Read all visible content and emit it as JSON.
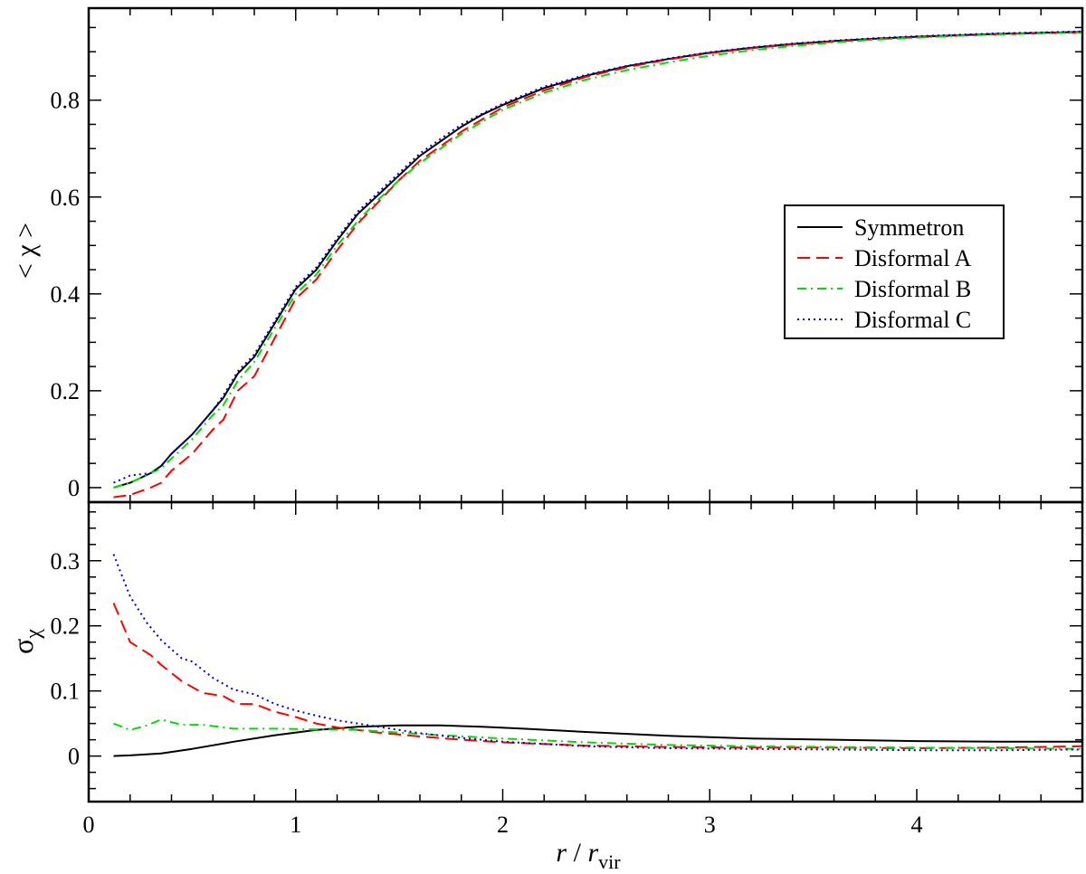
{
  "chart_data": [
    {
      "type": "line",
      "panel": "top",
      "xlabel": "",
      "ylabel": "< χ >",
      "xlim": [
        0,
        4.8
      ],
      "ylim": [
        -0.03,
        0.99
      ],
      "yticks": [
        0,
        0.2,
        0.4,
        0.6,
        0.8
      ],
      "ytick_labels": [
        "0",
        "0.2",
        "0.4",
        "0.6",
        "0.8"
      ],
      "legend": {
        "placement": "center-right",
        "entries": [
          "Symmetron",
          "Disformal A",
          "Disformal B",
          "Disformal C"
        ]
      },
      "series": [
        {
          "name": "Symmetron",
          "color": "#000000",
          "dash": "solid",
          "x": [
            0.12,
            0.2,
            0.3,
            0.35,
            0.4,
            0.5,
            0.6,
            0.65,
            0.72,
            0.8,
            0.9,
            1.0,
            1.1,
            1.2,
            1.3,
            1.4,
            1.5,
            1.6,
            1.7,
            1.8,
            1.9,
            2.0,
            2.2,
            2.4,
            2.6,
            2.8,
            3.0,
            3.2,
            3.4,
            3.6,
            3.8,
            4.0,
            4.2,
            4.4,
            4.6,
            4.8
          ],
          "y": [
            0.0,
            0.01,
            0.03,
            0.045,
            0.07,
            0.11,
            0.16,
            0.185,
            0.235,
            0.27,
            0.34,
            0.41,
            0.45,
            0.51,
            0.565,
            0.605,
            0.645,
            0.685,
            0.715,
            0.745,
            0.77,
            0.79,
            0.825,
            0.85,
            0.87,
            0.885,
            0.898,
            0.908,
            0.916,
            0.922,
            0.927,
            0.931,
            0.934,
            0.937,
            0.939,
            0.941
          ]
        },
        {
          "name": "Disformal A",
          "color": "#ff0000",
          "dash": "dashed",
          "x": [
            0.12,
            0.2,
            0.3,
            0.35,
            0.4,
            0.5,
            0.6,
            0.65,
            0.72,
            0.8,
            0.9,
            1.0,
            1.1,
            1.2,
            1.3,
            1.4,
            1.5,
            1.6,
            1.7,
            1.8,
            1.9,
            2.0,
            2.2,
            2.4,
            2.6,
            2.8,
            3.0,
            3.2,
            3.4,
            3.6,
            3.8,
            4.0,
            4.2,
            4.4,
            4.6,
            4.8
          ],
          "y": [
            -0.02,
            -0.015,
            0.0,
            0.01,
            0.035,
            0.07,
            0.12,
            0.14,
            0.2,
            0.23,
            0.31,
            0.39,
            0.43,
            0.49,
            0.545,
            0.59,
            0.635,
            0.675,
            0.705,
            0.735,
            0.76,
            0.785,
            0.82,
            0.848,
            0.868,
            0.884,
            0.897,
            0.907,
            0.915,
            0.921,
            0.926,
            0.93,
            0.933,
            0.936,
            0.938,
            0.94
          ]
        },
        {
          "name": "Disformal B",
          "color": "#00dd00",
          "dash": "dash-dot",
          "x": [
            0.12,
            0.2,
            0.3,
            0.35,
            0.4,
            0.5,
            0.6,
            0.65,
            0.72,
            0.8,
            0.9,
            1.0,
            1.1,
            1.2,
            1.3,
            1.4,
            1.5,
            1.6,
            1.7,
            1.8,
            1.9,
            2.0,
            2.2,
            2.4,
            2.6,
            2.8,
            3.0,
            3.2,
            3.4,
            3.6,
            3.8,
            4.0,
            4.2,
            4.4,
            4.6,
            4.8
          ],
          "y": [
            0.0,
            0.01,
            0.03,
            0.04,
            0.06,
            0.1,
            0.15,
            0.17,
            0.22,
            0.26,
            0.33,
            0.4,
            0.44,
            0.5,
            0.55,
            0.595,
            0.635,
            0.67,
            0.7,
            0.73,
            0.755,
            0.78,
            0.815,
            0.842,
            0.862,
            0.878,
            0.892,
            0.903,
            0.912,
            0.919,
            0.925,
            0.929,
            0.933,
            0.936,
            0.938,
            0.94
          ]
        },
        {
          "name": "Disformal C",
          "color": "#0000cc",
          "dash": "dotted",
          "x": [
            0.12,
            0.2,
            0.3,
            0.35,
            0.4,
            0.5,
            0.6,
            0.65,
            0.72,
            0.8,
            0.9,
            1.0,
            1.1,
            1.2,
            1.3,
            1.4,
            1.5,
            1.6,
            1.7,
            1.8,
            1.9,
            2.0,
            2.2,
            2.4,
            2.6,
            2.8,
            3.0,
            3.2,
            3.4,
            3.6,
            3.8,
            4.0,
            4.2,
            4.4,
            4.6,
            4.8
          ],
          "y": [
            0.01,
            0.025,
            0.03,
            0.045,
            0.07,
            0.11,
            0.16,
            0.19,
            0.24,
            0.275,
            0.345,
            0.415,
            0.455,
            0.515,
            0.57,
            0.61,
            0.65,
            0.69,
            0.72,
            0.75,
            0.772,
            0.793,
            0.828,
            0.852,
            0.871,
            0.886,
            0.899,
            0.909,
            0.917,
            0.923,
            0.928,
            0.932,
            0.935,
            0.938,
            0.94,
            0.942
          ]
        }
      ]
    },
    {
      "type": "line",
      "panel": "bottom",
      "xlabel": "r / r_vir",
      "ylabel": "σ_χ",
      "xlim": [
        0,
        4.8
      ],
      "ylim": [
        -0.07,
        0.39
      ],
      "xticks": [
        0,
        1,
        2,
        3,
        4
      ],
      "xtick_labels": [
        "0",
        "1",
        "2",
        "3",
        "4"
      ],
      "yticks": [
        0,
        0.1,
        0.2,
        0.3
      ],
      "ytick_labels": [
        "0",
        "0.1",
        "0.2",
        "0.3"
      ],
      "series": [
        {
          "name": "Symmetron",
          "color": "#000000",
          "dash": "solid",
          "x": [
            0.12,
            0.2,
            0.35,
            0.5,
            0.7,
            0.9,
            1.1,
            1.3,
            1.5,
            1.7,
            1.9,
            2.1,
            2.4,
            2.8,
            3.2,
            3.6,
            4.0,
            4.4,
            4.8
          ],
          "y": [
            0.0,
            0.001,
            0.004,
            0.011,
            0.022,
            0.032,
            0.04,
            0.045,
            0.047,
            0.047,
            0.045,
            0.042,
            0.037,
            0.031,
            0.027,
            0.025,
            0.023,
            0.022,
            0.022
          ]
        },
        {
          "name": "Disformal A",
          "color": "#ff0000",
          "dash": "dashed",
          "x": [
            0.12,
            0.2,
            0.3,
            0.35,
            0.45,
            0.55,
            0.65,
            0.72,
            0.8,
            0.9,
            1.0,
            1.1,
            1.2,
            1.4,
            1.6,
            1.8,
            2.0,
            2.4,
            2.8,
            3.2,
            3.6,
            4.0,
            4.4,
            4.8
          ],
          "y": [
            0.235,
            0.175,
            0.155,
            0.14,
            0.115,
            0.097,
            0.092,
            0.08,
            0.08,
            0.068,
            0.06,
            0.05,
            0.044,
            0.036,
            0.03,
            0.025,
            0.021,
            0.016,
            0.014,
            0.013,
            0.013,
            0.012,
            0.013,
            0.015
          ]
        },
        {
          "name": "Disformal B",
          "color": "#00dd00",
          "dash": "dash-dot",
          "x": [
            0.12,
            0.2,
            0.28,
            0.35,
            0.45,
            0.55,
            0.7,
            0.9,
            1.1,
            1.3,
            1.5,
            1.7,
            2.0,
            2.4,
            2.8,
            3.2,
            3.6,
            4.0,
            4.4,
            4.8
          ],
          "y": [
            0.05,
            0.04,
            0.047,
            0.056,
            0.048,
            0.048,
            0.042,
            0.042,
            0.041,
            0.04,
            0.036,
            0.032,
            0.027,
            0.021,
            0.017,
            0.015,
            0.014,
            0.013,
            0.012,
            0.011
          ]
        },
        {
          "name": "Disformal C",
          "color": "#0000cc",
          "dash": "dotted",
          "x": [
            0.12,
            0.2,
            0.28,
            0.35,
            0.45,
            0.5,
            0.6,
            0.7,
            0.8,
            0.9,
            1.0,
            1.1,
            1.2,
            1.4,
            1.6,
            1.8,
            2.0,
            2.4,
            2.8,
            3.2,
            3.6,
            4.0,
            4.4,
            4.8
          ],
          "y": [
            0.31,
            0.245,
            0.205,
            0.178,
            0.15,
            0.145,
            0.12,
            0.102,
            0.095,
            0.08,
            0.07,
            0.062,
            0.055,
            0.045,
            0.035,
            0.028,
            0.022,
            0.015,
            0.012,
            0.011,
            0.01,
            0.009,
            0.009,
            0.01
          ]
        }
      ]
    }
  ]
}
